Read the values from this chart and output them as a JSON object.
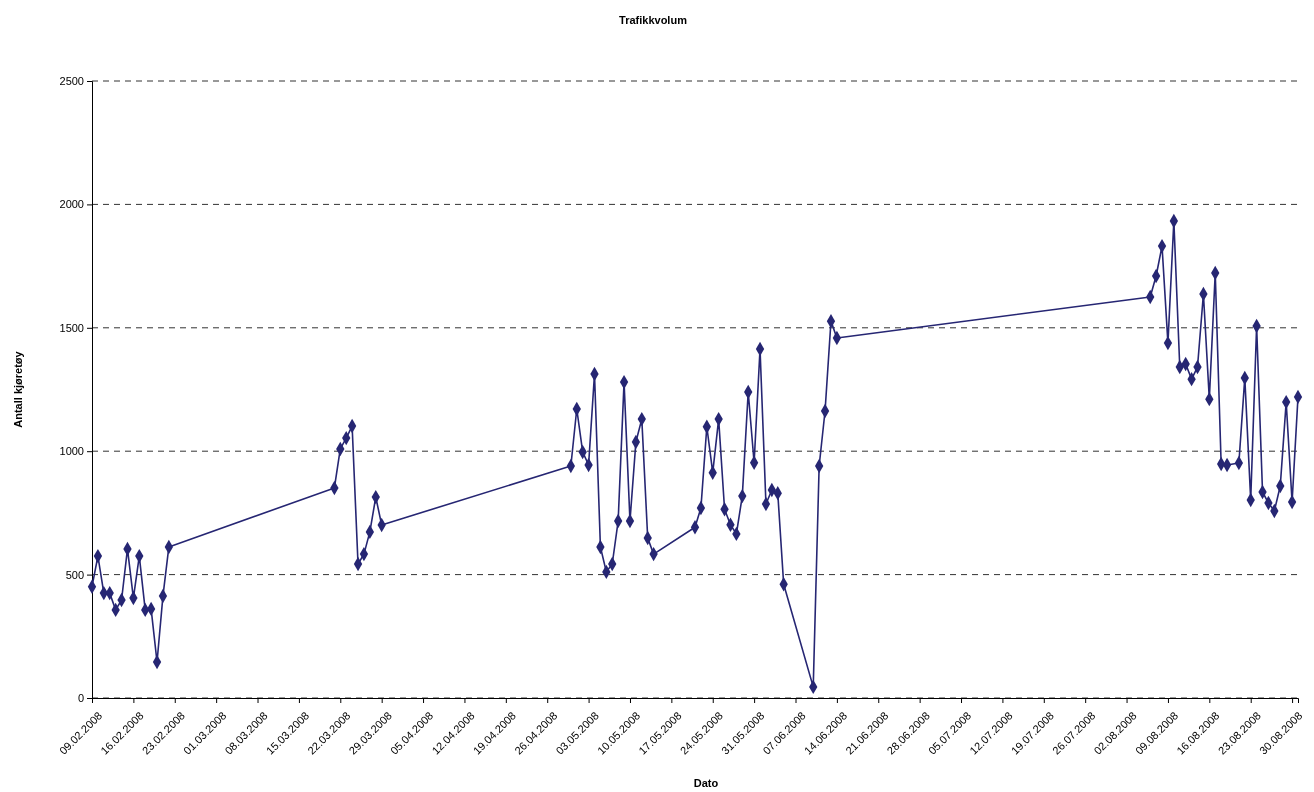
{
  "chart_data": {
    "type": "line",
    "title": "Trafikkvolum",
    "xlabel": "Dato",
    "ylabel": "Antall kjøretøy",
    "x": [
      "2008-02-09",
      "2008-02-10",
      "2008-02-11",
      "2008-02-12",
      "2008-02-13",
      "2008-02-14",
      "2008-02-15",
      "2008-02-16",
      "2008-02-17",
      "2008-02-18",
      "2008-02-19",
      "2008-02-20",
      "2008-02-21",
      "2008-02-22",
      "2008-03-21",
      "2008-03-22",
      "2008-03-23",
      "2008-03-24",
      "2008-03-25",
      "2008-03-26",
      "2008-03-27",
      "2008-03-28",
      "2008-03-29",
      "2008-04-30",
      "2008-05-01",
      "2008-05-02",
      "2008-05-03",
      "2008-05-04",
      "2008-05-05",
      "2008-05-06",
      "2008-05-07",
      "2008-05-08",
      "2008-05-09",
      "2008-05-10",
      "2008-05-11",
      "2008-05-12",
      "2008-05-13",
      "2008-05-14",
      "2008-05-21",
      "2008-05-22",
      "2008-05-23",
      "2008-05-24",
      "2008-05-25",
      "2008-05-26",
      "2008-05-27",
      "2008-05-28",
      "2008-05-29",
      "2008-05-30",
      "2008-05-31",
      "2008-06-01",
      "2008-06-02",
      "2008-06-03",
      "2008-06-04",
      "2008-06-05",
      "2008-06-10",
      "2008-06-11",
      "2008-06-12",
      "2008-06-13",
      "2008-06-14",
      "2008-08-06",
      "2008-08-07",
      "2008-08-08",
      "2008-08-09",
      "2008-08-10",
      "2008-08-11",
      "2008-08-12",
      "2008-08-13",
      "2008-08-14",
      "2008-08-15",
      "2008-08-16",
      "2008-08-17",
      "2008-08-18",
      "2008-08-19",
      "2008-08-21",
      "2008-08-22",
      "2008-08-23",
      "2008-08-24",
      "2008-08-25",
      "2008-08-26",
      "2008-08-27",
      "2008-08-28",
      "2008-08-29",
      "2008-08-30",
      "2008-08-31"
    ],
    "series": [
      {
        "color": "#262673",
        "values": [
          451,
          575,
          425,
          425,
          357,
          397,
          604,
          405,
          575,
          357,
          361,
          146,
          413,
          612,
          851,
          1009,
          1053,
          1102,
          543,
          583,
          673,
          814,
          701,
          940,
          1171,
          997,
          944,
          1313,
          612,
          511,
          543,
          717,
          1280,
          717,
          1037,
          1130,
          648,
          583,
          692,
          770,
          1099,
          913,
          1130,
          765,
          702,
          665,
          818,
          1240,
          953,
          1414,
          786,
          843,
          830,
          461,
          45,
          940,
          1163,
          1527,
          1459,
          1625,
          1710,
          1831,
          1438,
          1933,
          1341,
          1353,
          1292,
          1341,
          1637,
          1211,
          1722,
          948,
          944,
          952,
          1297,
          802,
          1507,
          835,
          790,
          758,
          859,
          1199,
          794,
          1220
        ]
      }
    ],
    "xlim": [
      "2008-02-09",
      "2008-08-31"
    ],
    "xticks": [
      {
        "value": "2008-02-09",
        "label": "09.02.2008"
      },
      {
        "value": "2008-02-16",
        "label": "16.02.2008"
      },
      {
        "value": "2008-02-23",
        "label": "23.02.2008"
      },
      {
        "value": "2008-03-01",
        "label": "01.03.2008"
      },
      {
        "value": "2008-03-08",
        "label": "08.03.2008"
      },
      {
        "value": "2008-03-15",
        "label": "15.03.2008"
      },
      {
        "value": "2008-03-22",
        "label": "22.03.2008"
      },
      {
        "value": "2008-03-29",
        "label": "29.03.2008"
      },
      {
        "value": "2008-04-05",
        "label": "05.04.2008"
      },
      {
        "value": "2008-04-12",
        "label": "12.04.2008"
      },
      {
        "value": "2008-04-19",
        "label": "19.04.2008"
      },
      {
        "value": "2008-04-26",
        "label": "26.04.2008"
      },
      {
        "value": "2008-05-03",
        "label": "03.05.2008"
      },
      {
        "value": "2008-05-10",
        "label": "10.05.2008"
      },
      {
        "value": "2008-05-17",
        "label": "17.05.2008"
      },
      {
        "value": "2008-05-24",
        "label": "24.05.2008"
      },
      {
        "value": "2008-05-31",
        "label": "31.05.2008"
      },
      {
        "value": "2008-06-07",
        "label": "07.06.2008"
      },
      {
        "value": "2008-06-14",
        "label": "14.06.2008"
      },
      {
        "value": "2008-06-21",
        "label": "21.06.2008"
      },
      {
        "value": "2008-06-28",
        "label": "28.06.2008"
      },
      {
        "value": "2008-07-05",
        "label": "05.07.2008"
      },
      {
        "value": "2008-07-12",
        "label": "12.07.2008"
      },
      {
        "value": "2008-07-19",
        "label": "19.07.2008"
      },
      {
        "value": "2008-07-26",
        "label": "26.07.2008"
      },
      {
        "value": "2008-08-02",
        "label": "02.08.2008"
      },
      {
        "value": "2008-08-09",
        "label": "09.08.2008"
      },
      {
        "value": "2008-08-16",
        "label": "16.08.2008"
      },
      {
        "value": "2008-08-23",
        "label": "23.08.2008"
      },
      {
        "value": "2008-08-30",
        "label": "30.08.2008"
      }
    ],
    "ylim": [
      0,
      2500
    ],
    "yticks": [
      0,
      500,
      1000,
      1500,
      2000,
      2500
    ],
    "grid": "y",
    "marker": "diamond",
    "line_style": "solid"
  }
}
